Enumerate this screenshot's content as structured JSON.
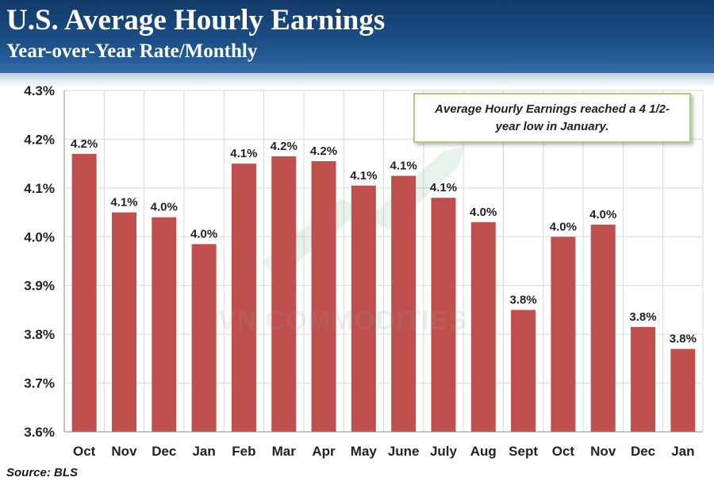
{
  "header": {
    "title": "U.S. Average Hourly Earnings",
    "subtitle": "Year-over-Year Rate/Monthly"
  },
  "source": "Source: BLS",
  "callout": "Average Hourly Earnings reached a 4 1/2-year low in January.",
  "watermark": "VN COMMODITIES",
  "colors": {
    "bar": "#c0504d",
    "header": "#1b4e86",
    "grid": "#d9d9d9"
  },
  "chart_data": {
    "type": "bar",
    "title": "U.S. Average Hourly Earnings",
    "subtitle": "Year-over-Year Rate/Monthly",
    "xlabel": "",
    "ylabel": "",
    "ylim": [
      3.6,
      4.3
    ],
    "yticks": [
      "3.6%",
      "3.7%",
      "3.8%",
      "3.9%",
      "4.0%",
      "4.1%",
      "4.2%",
      "4.3%"
    ],
    "grid": true,
    "categories": [
      "Oct",
      "Nov",
      "Dec",
      "Jan",
      "Feb",
      "Mar",
      "Apr",
      "May",
      "June",
      "July",
      "Aug",
      "Sept",
      "Oct",
      "Nov",
      "Dec",
      "Jan"
    ],
    "values": [
      4.17,
      4.05,
      4.04,
      3.985,
      4.15,
      4.165,
      4.155,
      4.105,
      4.125,
      4.08,
      4.03,
      3.85,
      4.0,
      4.025,
      3.815,
      3.77
    ],
    "data_labels": [
      "4.2%",
      "4.1%",
      "4.0%",
      "4.0%",
      "4.1%",
      "4.2%",
      "4.2%",
      "4.1%",
      "4.1%",
      "4.1%",
      "4.0%",
      "3.8%",
      "4.0%",
      "4.0%",
      "3.8%",
      "3.8%"
    ]
  }
}
